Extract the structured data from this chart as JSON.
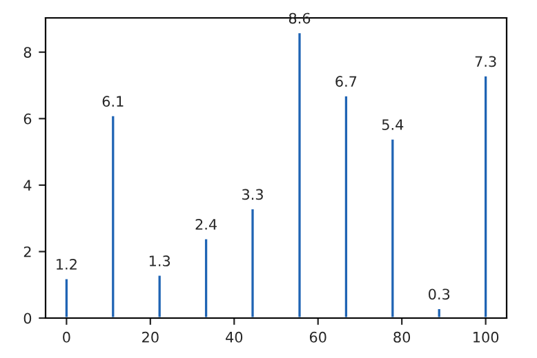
{
  "chart_data": {
    "type": "bar",
    "x": [
      0,
      11.1,
      22.2,
      33.3,
      44.4,
      55.6,
      66.7,
      77.8,
      88.9,
      100
    ],
    "values": [
      1.2,
      6.1,
      1.3,
      2.4,
      3.3,
      8.6,
      6.7,
      5.4,
      0.3,
      7.3
    ],
    "color": "#1f64b4",
    "data_labels": true,
    "xlim": [
      -5,
      105
    ],
    "xticks": [
      0,
      20,
      40,
      60,
      80,
      100
    ],
    "ylim": [
      0,
      9.03
    ],
    "yticks": [
      0,
      2,
      4,
      6,
      8
    ],
    "grid": false
  }
}
